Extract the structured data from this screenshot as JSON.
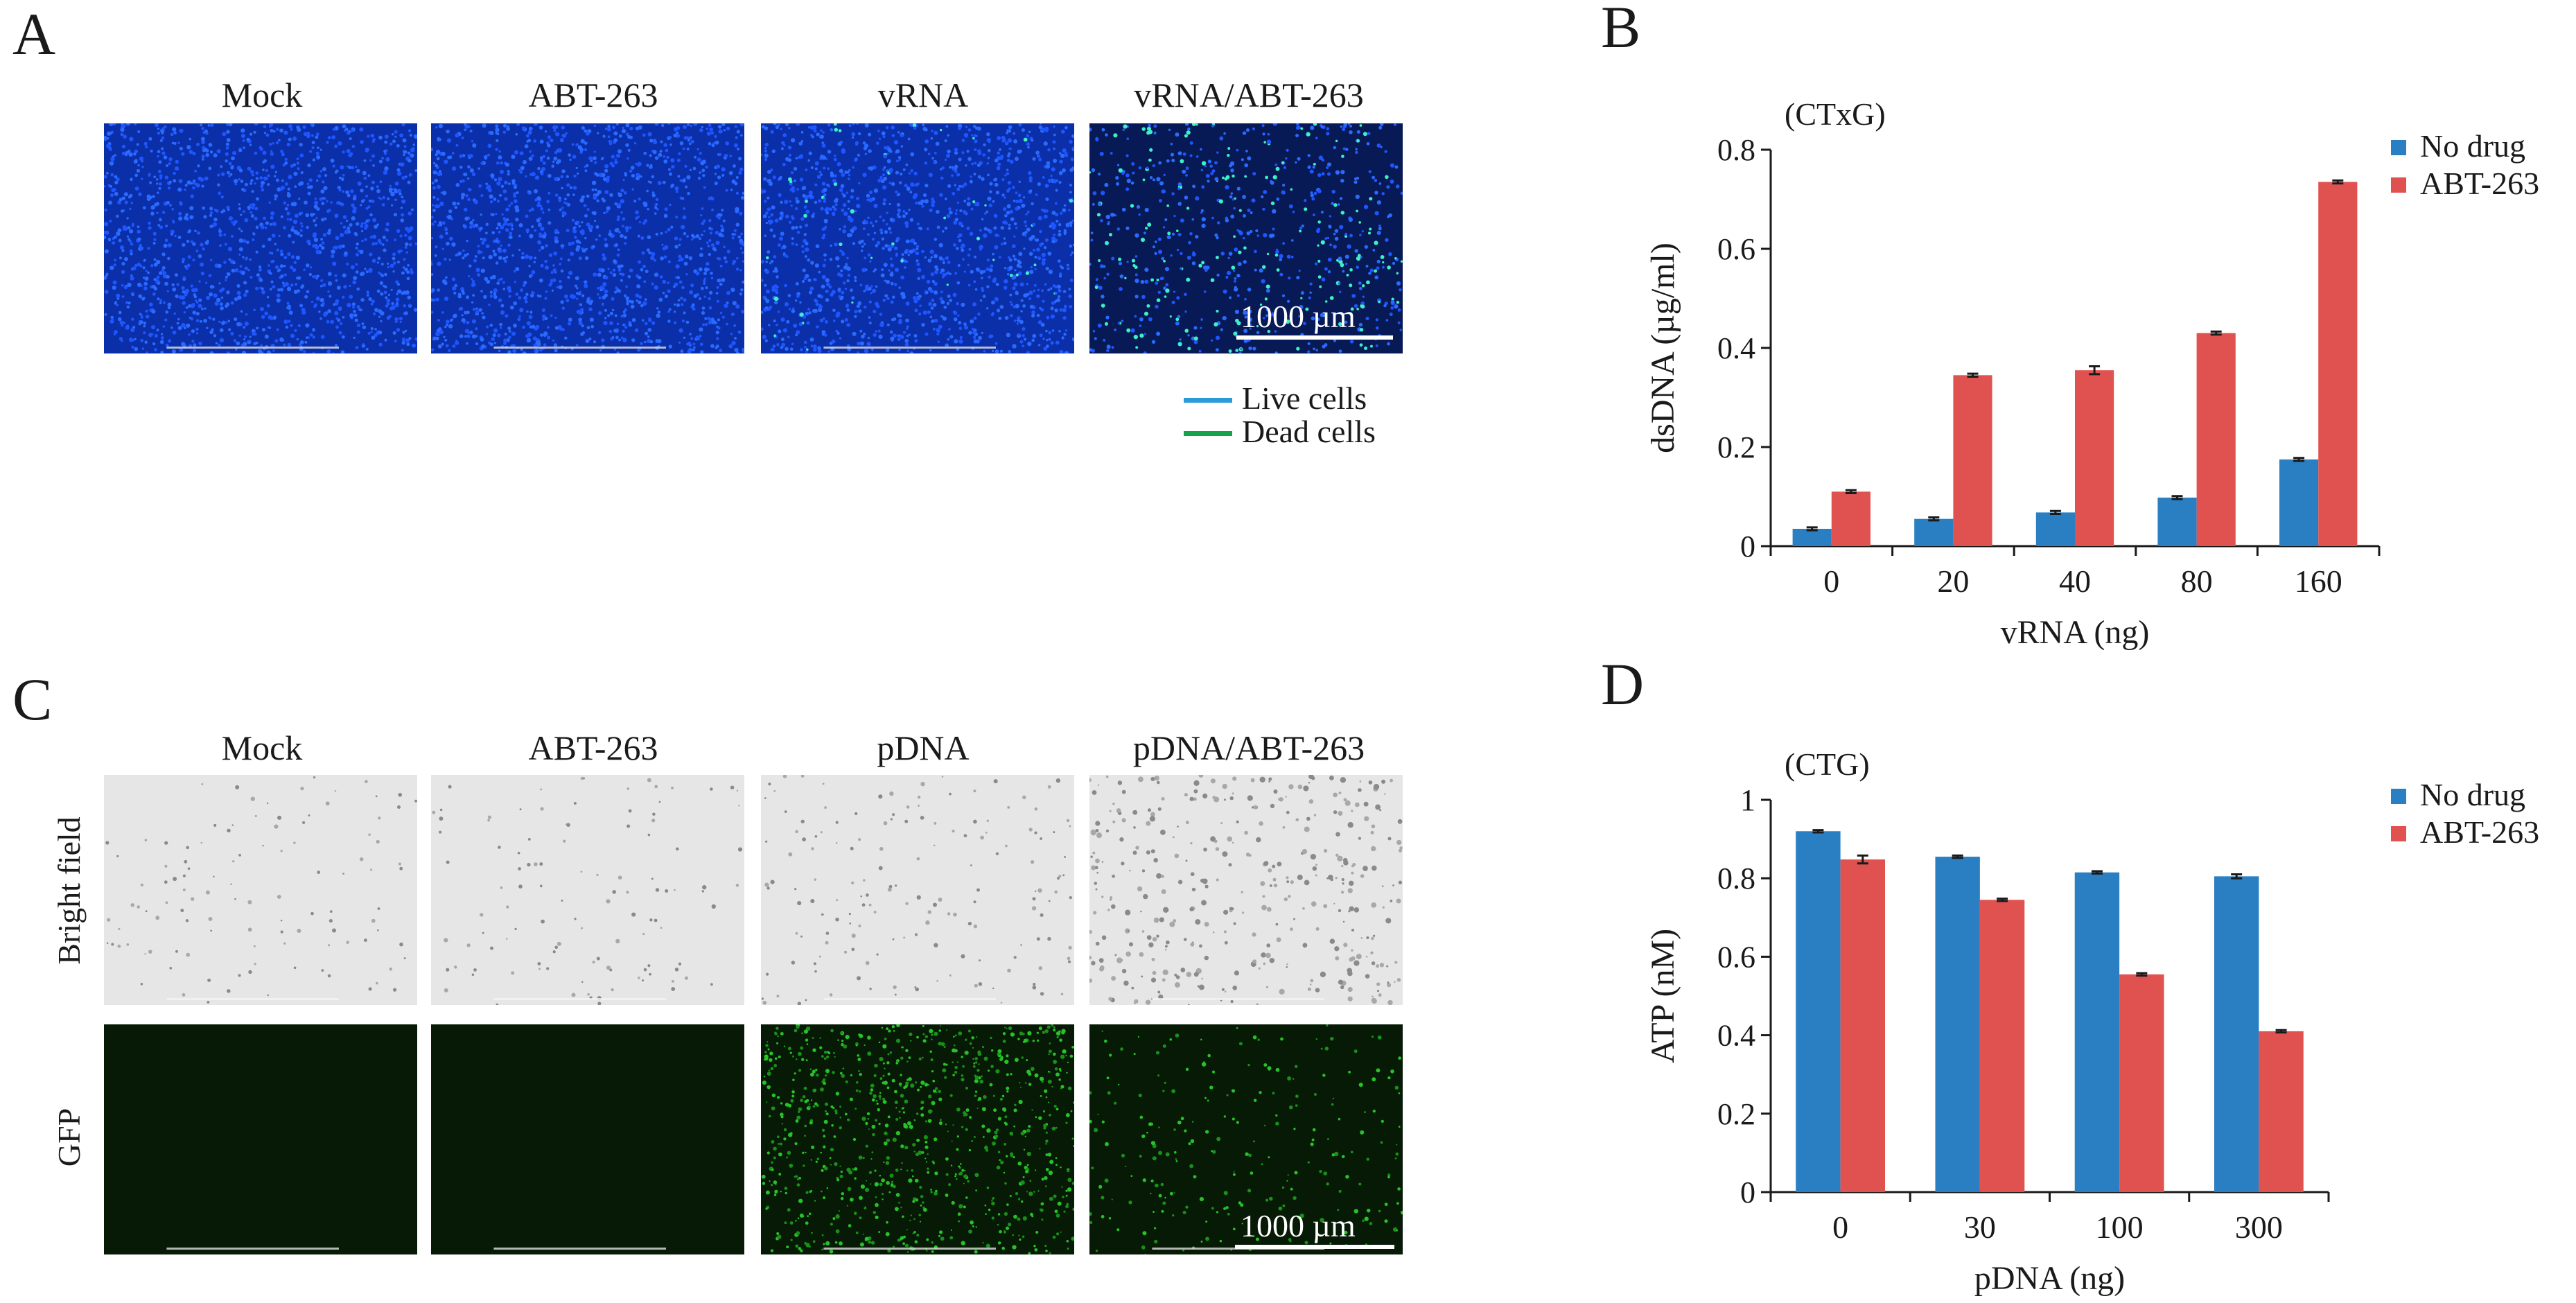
{
  "colors": {
    "blue_nuclei": "#0a3ccf",
    "green_dead": "#1fd6a0",
    "no_drug": "#2a7fc2",
    "abt263": "#e05250",
    "live_line": "#2a9ad8",
    "dead_line": "#17a34a",
    "gfp_green": "#2bd12b"
  },
  "panel_a": {
    "letter": "A",
    "columns": [
      "Mock",
      "ABT-263",
      "vRNA",
      "vRNA/ABT-263"
    ],
    "scale_label": "1000 µm",
    "legend": [
      {
        "label": "Live cells",
        "color": "#2a9ad8"
      },
      {
        "label": "Dead cells",
        "color": "#17a34a"
      }
    ]
  },
  "panel_c": {
    "letter": "C",
    "columns": [
      "Mock",
      "ABT-263",
      "pDNA",
      "pDNA/ABT-263"
    ],
    "rows": [
      "Bright field",
      "GFP"
    ],
    "scale_label": "1000 µm"
  },
  "chart_data": [
    {
      "panel": "B",
      "type": "bar",
      "annotation": "(CTxG)",
      "categories": [
        "0",
        "20",
        "40",
        "80",
        "160"
      ],
      "series": [
        {
          "name": "No drug",
          "values": [
            0.035,
            0.055,
            0.068,
            0.098,
            0.175
          ],
          "errors": [
            0.003,
            0.003,
            0.003,
            0.003,
            0.003
          ],
          "color": "#2a7fc2"
        },
        {
          "name": "ABT-263",
          "values": [
            0.11,
            0.345,
            0.355,
            0.43,
            0.735
          ],
          "errors": [
            0.003,
            0.003,
            0.008,
            0.003,
            0.003
          ],
          "color": "#e05250"
        }
      ],
      "xlabel": "vRNA (ng)",
      "ylabel": "dsDNA (µg/ml)",
      "ylim": [
        0,
        0.8
      ],
      "yticks": [
        "0",
        "0.2",
        "0.4",
        "0.6",
        "0.8"
      ],
      "ytick_values": [
        0,
        0.2,
        0.4,
        0.6,
        0.8
      ],
      "legend_position": "top-right",
      "grid": false
    },
    {
      "panel": "D",
      "type": "bar",
      "annotation": "(CTG)",
      "categories": [
        "0",
        "30",
        "100",
        "300"
      ],
      "series": [
        {
          "name": "No drug",
          "values": [
            0.92,
            0.855,
            0.815,
            0.805
          ],
          "errors": [
            0.003,
            0.003,
            0.003,
            0.005
          ],
          "color": "#2a7fc2"
        },
        {
          "name": "ABT-263",
          "values": [
            0.848,
            0.745,
            0.555,
            0.41
          ],
          "errors": [
            0.01,
            0.003,
            0.003,
            0.003
          ],
          "color": "#e05250"
        }
      ],
      "xlabel": "pDNA (ng)",
      "ylabel": "ATP (nM)",
      "ylim": [
        0,
        1
      ],
      "yticks": [
        "0",
        "0.2",
        "0.4",
        "0.6",
        "0.8",
        "1"
      ],
      "ytick_values": [
        0,
        0.2,
        0.4,
        0.6,
        0.8,
        1
      ],
      "legend_position": "top-right",
      "grid": false
    }
  ]
}
